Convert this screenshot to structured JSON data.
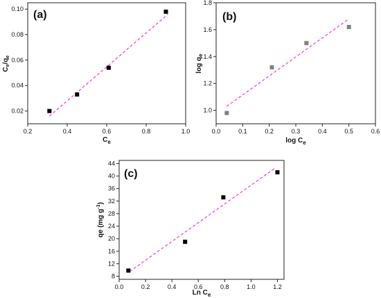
{
  "chart_data": [
    {
      "type": "scatter",
      "panel_label": "(a)",
      "xlabel_main": "C",
      "xlabel_sub": "e",
      "ylabel_main": "C",
      "ylabel_sub1": "e",
      "ylabel_mid": "/q",
      "ylabel_sub2": "e",
      "xlim": [
        0.2,
        1.0
      ],
      "ylim": [
        0.01,
        0.105
      ],
      "xticks": [
        0.2,
        0.4,
        0.6,
        0.8,
        1.0
      ],
      "xtick_labels": [
        "0.2",
        "0.4",
        "0.6",
        "0.8",
        "1.0"
      ],
      "yticks": [
        0.02,
        0.04,
        0.06,
        0.08,
        0.1
      ],
      "ytick_labels": [
        "0.02",
        "0.04",
        "0.06",
        "0.08",
        "0.10"
      ],
      "points": [
        {
          "x": 0.31,
          "y": 0.02
        },
        {
          "x": 0.45,
          "y": 0.033
        },
        {
          "x": 0.61,
          "y": 0.054
        },
        {
          "x": 0.9,
          "y": 0.098
        }
      ],
      "fit_line": [
        [
          0.31,
          0.016
        ],
        [
          0.91,
          0.096
        ]
      ],
      "marker_color": "#000000",
      "fit_color": "#ff33cc"
    },
    {
      "type": "scatter",
      "panel_label": "(b)",
      "xlabel_main": "log C",
      "xlabel_sub": "e",
      "ylabel_main": "log q",
      "ylabel_sub": "e",
      "xlim": [
        0.0,
        0.6
      ],
      "ylim": [
        0.9,
        1.8
      ],
      "xticks": [
        0.0,
        0.1,
        0.2,
        0.3,
        0.4,
        0.5,
        0.6
      ],
      "xtick_labels": [
        "0.0",
        "0.1",
        "0.2",
        "0.3",
        "0.4",
        "0.5",
        "0.6"
      ],
      "yticks": [
        1.0,
        1.2,
        1.4,
        1.6,
        1.8
      ],
      "ytick_labels": [
        "1.0",
        "1.2",
        "1.4",
        "1.6",
        "1.8"
      ],
      "points": [
        {
          "x": 0.04,
          "y": 0.98
        },
        {
          "x": 0.21,
          "y": 1.32
        },
        {
          "x": 0.34,
          "y": 1.5
        },
        {
          "x": 0.5,
          "y": 1.62
        }
      ],
      "fit_line": [
        [
          0.04,
          1.03
        ],
        [
          0.5,
          1.68
        ]
      ],
      "marker_color": "#808080",
      "fit_color": "#ff33cc"
    },
    {
      "type": "scatter",
      "panel_label": "(c)",
      "xlabel_main": "Ln C",
      "xlabel_sub": "e",
      "ylabel_main": "qe (mg g",
      "ylabel_sup": "-1",
      "ylabel_end": ")",
      "xlim": [
        0.0,
        1.25
      ],
      "ylim": [
        7,
        45
      ],
      "xticks": [
        0.0,
        0.2,
        0.4,
        0.6,
        0.8,
        1.0,
        1.2
      ],
      "xtick_labels": [
        "0.0",
        "0.2",
        "0.4",
        "0.6",
        "0.8",
        "1.0",
        "1.2"
      ],
      "yticks": [
        8,
        12,
        16,
        20,
        24,
        28,
        32,
        36,
        40,
        44
      ],
      "ytick_labels": [
        "8",
        "12",
        "16",
        "20",
        "24",
        "28",
        "32",
        "36",
        "40",
        "44"
      ],
      "points": [
        {
          "x": 0.07,
          "y": 9.8
        },
        {
          "x": 0.5,
          "y": 19.0
        },
        {
          "x": 0.79,
          "y": 33.2
        },
        {
          "x": 1.2,
          "y": 41.2
        }
      ],
      "fit_line": [
        [
          0.08,
          9.5
        ],
        [
          1.18,
          42.5
        ]
      ],
      "marker_color": "#000000",
      "fit_color": "#ff33cc"
    }
  ]
}
